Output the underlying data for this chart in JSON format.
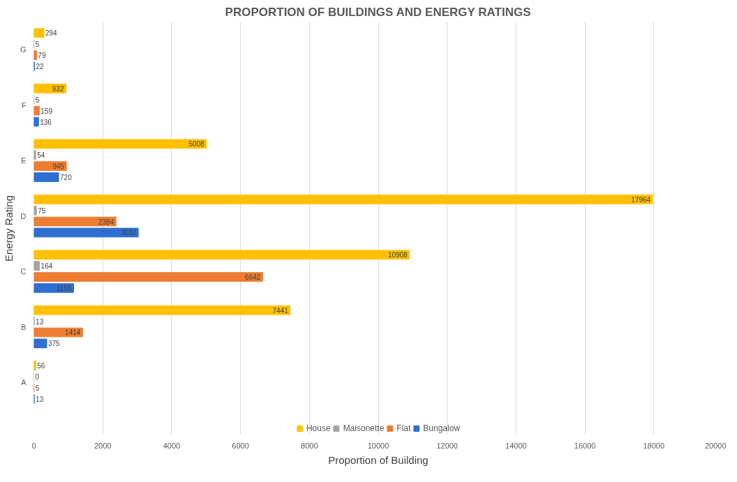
{
  "chart_data": {
    "type": "bar",
    "orientation": "horizontal",
    "title": "PROPORTION OF BUILDINGS AND ENERGY RATINGS",
    "xlabel": "Proportion of Building",
    "ylabel": "Energy Rating",
    "categories": [
      "G",
      "F",
      "E",
      "D",
      "C",
      "B",
      "A"
    ],
    "series": [
      {
        "name": "House",
        "color": "#ffc000",
        "values": [
          294,
          932,
          5008,
          17964,
          10908,
          7441,
          56
        ]
      },
      {
        "name": "Maisonette",
        "color": "#a5a5a5",
        "values": [
          5,
          5,
          54,
          75,
          164,
          13,
          0
        ]
      },
      {
        "name": "Flat",
        "color": "#ed7d31",
        "values": [
          79,
          159,
          945,
          2384,
          6642,
          1414,
          5
        ]
      },
      {
        "name": "Bungalow",
        "color": "#2e6fd1",
        "values": [
          22,
          136,
          720,
          3032,
          1155,
          375,
          13
        ]
      }
    ],
    "xlim": [
      0,
      20000
    ],
    "xticks": [
      0,
      2000,
      4000,
      6000,
      8000,
      10000,
      12000,
      14000,
      16000,
      18000,
      20000
    ],
    "grid": "x",
    "legend": "bottom",
    "data_labels": true
  }
}
